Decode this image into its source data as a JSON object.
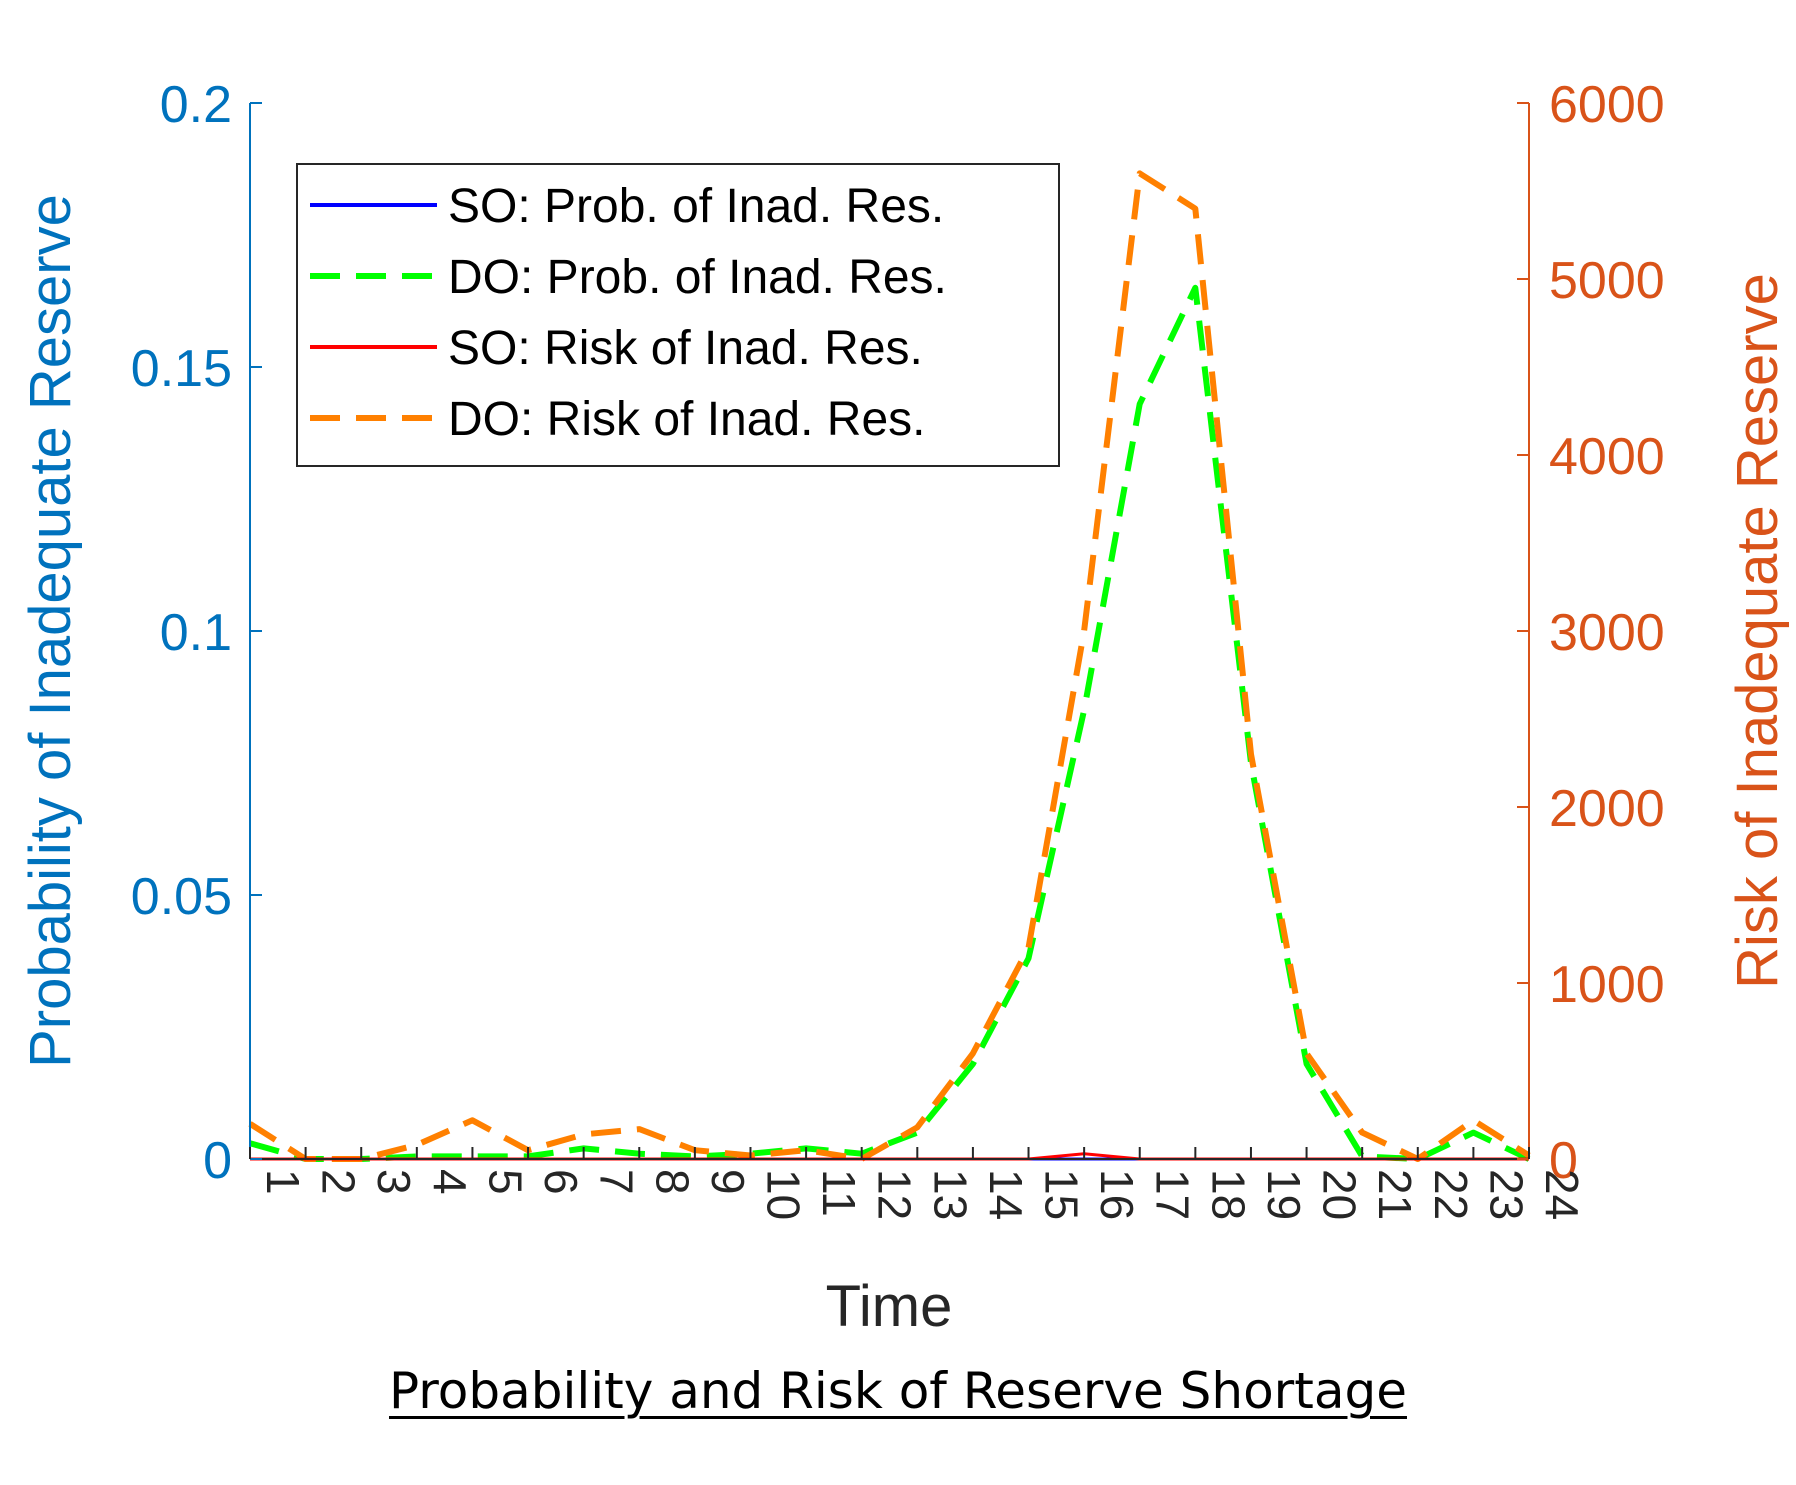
{
  "caption": "Probability and Risk of Reserve Shortage",
  "colors": {
    "left_axis": "#0072BD",
    "right_axis": "#D95319",
    "so_prob": "#0000FF",
    "do_prob": "#00FF00",
    "so_risk": "#FF0000",
    "do_risk": "#FF8000",
    "axis_black": "#262626"
  },
  "chart_data": {
    "type": "line",
    "xlabel": "Time",
    "ylabel_left": "Probability of Inadequate Reserve",
    "ylabel_right": "Risk of Inadequate Reserve",
    "ylim_left": [
      0,
      0.2
    ],
    "ylim_right": [
      0,
      6000
    ],
    "xlim": [
      1,
      24
    ],
    "yticks_left": [
      "0",
      "0.05",
      "0.1",
      "0.15",
      "0.2"
    ],
    "yticks_right": [
      "0",
      "1000",
      "2000",
      "3000",
      "4000",
      "5000",
      "6000"
    ],
    "x": [
      1,
      2,
      3,
      4,
      5,
      6,
      7,
      8,
      9,
      10,
      11,
      12,
      13,
      14,
      15,
      16,
      17,
      18,
      19,
      20,
      21,
      22,
      23,
      24
    ],
    "x_tick_labels": [
      "1",
      "2",
      "3",
      "4",
      "5",
      "6",
      "7",
      "8",
      "9",
      "10",
      "11",
      "12",
      "13",
      "14",
      "15",
      "16",
      "17",
      "18",
      "19",
      "20",
      "21",
      "22",
      "23",
      "24"
    ],
    "legend_position": "top-left",
    "series": [
      {
        "name": "SO: Prob. of Inad. Res.",
        "axis": "left",
        "style": "solid",
        "values": [
          0,
          0,
          0,
          0,
          0,
          0,
          0,
          0,
          0,
          0,
          0,
          0,
          0,
          0,
          0,
          0,
          0,
          0,
          0,
          0,
          0,
          0,
          0,
          0
        ]
      },
      {
        "name": "DO: Prob. of Inad. Res.",
        "axis": "left",
        "style": "dashed",
        "values": [
          0.003,
          0,
          0,
          0.0005,
          0.0005,
          0.0005,
          0.002,
          0.001,
          0.0005,
          0.001,
          0.002,
          0.001,
          0.005,
          0.018,
          0.038,
          0.085,
          0.143,
          0.165,
          0.075,
          0.018,
          0.0005,
          0,
          0.005,
          0
        ]
      },
      {
        "name": "SO: Risk of Inad. Res.",
        "axis": "right",
        "style": "solid",
        "values": [
          0,
          0,
          0,
          0,
          0,
          0,
          0,
          0,
          0,
          0,
          0,
          0,
          0,
          0,
          0,
          30,
          0,
          0,
          0,
          0,
          0,
          0,
          0,
          0
        ]
      },
      {
        "name": "DO: Risk of Inad. Res.",
        "axis": "right",
        "style": "dashed",
        "values": [
          200,
          0,
          0,
          80,
          220,
          50,
          140,
          170,
          50,
          20,
          50,
          0,
          180,
          600,
          1200,
          3000,
          5600,
          5400,
          2300,
          600,
          150,
          0,
          220,
          20
        ]
      }
    ]
  }
}
